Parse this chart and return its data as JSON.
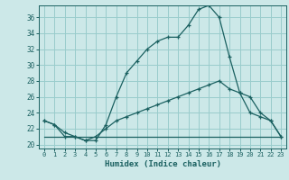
{
  "xlabel": "Humidex (Indice chaleur)",
  "bg_color": "#cce8e8",
  "grid_color": "#99cccc",
  "line_color": "#1a6060",
  "xlim": [
    -0.5,
    23.5
  ],
  "ylim": [
    19.5,
    37.5
  ],
  "xticks": [
    0,
    1,
    2,
    3,
    4,
    5,
    6,
    7,
    8,
    9,
    10,
    11,
    12,
    13,
    14,
    15,
    16,
    17,
    18,
    19,
    20,
    21,
    22,
    23
  ],
  "yticks": [
    20,
    22,
    24,
    26,
    28,
    30,
    32,
    34,
    36
  ],
  "curve1_x": [
    0,
    1,
    2,
    3,
    4,
    5,
    6,
    7,
    8,
    9,
    10,
    11,
    12,
    13,
    14,
    15,
    16,
    17,
    18,
    19,
    20,
    21,
    22,
    23
  ],
  "curve1_y": [
    23,
    22.5,
    21,
    21,
    20.5,
    20.5,
    22.5,
    26,
    29,
    30.5,
    32,
    33,
    33.5,
    33.5,
    35,
    37,
    37.5,
    36,
    31,
    26.5,
    24,
    23.5,
    23,
    21
  ],
  "curve2_x": [
    0,
    1,
    2,
    3,
    4,
    5,
    6,
    7,
    8,
    9,
    10,
    11,
    12,
    13,
    14,
    15,
    16,
    17,
    18,
    19,
    20,
    21,
    22,
    23
  ],
  "curve2_y": [
    23,
    22.5,
    21.5,
    21,
    20.5,
    21,
    22,
    23,
    23.5,
    24,
    24.5,
    25,
    25.5,
    26,
    26.5,
    27,
    27.5,
    28,
    27,
    26.5,
    26,
    24,
    23,
    21
  ],
  "curve3_x": [
    0,
    1,
    2,
    3,
    4,
    5,
    6,
    7,
    8,
    9,
    10,
    11,
    12,
    13,
    14,
    15,
    16,
    17,
    18,
    19,
    20,
    21,
    22,
    23
  ],
  "curve3_y": [
    21,
    21,
    21,
    21,
    21,
    21,
    21,
    21,
    21,
    21,
    21,
    21,
    21,
    21,
    21,
    21,
    21,
    21,
    21,
    21,
    21,
    21,
    21,
    21
  ]
}
